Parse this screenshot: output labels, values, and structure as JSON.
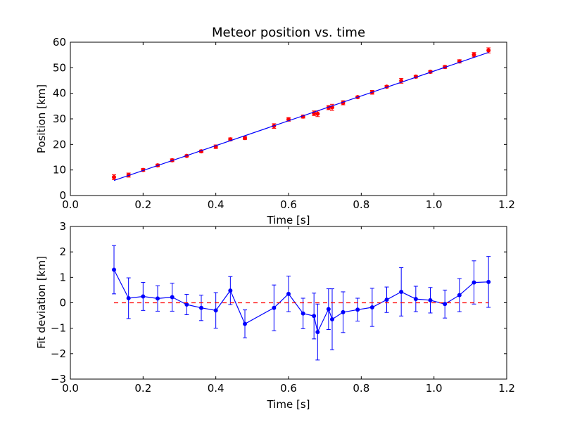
{
  "colors": {
    "fit_line": "#0000ff",
    "data_points": "#ff0000",
    "deviation_line": "#0000ff",
    "zero_line": "#ff0000",
    "axes": "#000000",
    "background": "#ffffff"
  },
  "chart_data": [
    {
      "type": "scatter",
      "title": "Meteor position vs. time",
      "xlabel": "Time [s]",
      "ylabel": "Position [km]",
      "xlim": [
        0.0,
        1.2
      ],
      "ylim": [
        0,
        60
      ],
      "xticks": [
        "0.0",
        "0.2",
        "0.4",
        "0.6",
        "0.8",
        "1.0",
        "1.2"
      ],
      "yticks": [
        "0",
        "10",
        "20",
        "30",
        "40",
        "50",
        "60"
      ],
      "grid": false,
      "legend": "none",
      "series": [
        {
          "kind": "errorbar-points",
          "color": "red",
          "x": [
            0.12,
            0.16,
            0.2,
            0.24,
            0.28,
            0.32,
            0.36,
            0.4,
            0.44,
            0.48,
            0.56,
            0.6,
            0.64,
            0.67,
            0.68,
            0.71,
            0.72,
            0.75,
            0.79,
            0.83,
            0.87,
            0.91,
            0.95,
            0.99,
            1.03,
            1.07,
            1.11,
            1.15
          ],
          "y": [
            7.2,
            8.0,
            10.0,
            11.8,
            13.8,
            15.5,
            17.3,
            19.1,
            22.0,
            22.5,
            27.2,
            29.8,
            30.9,
            32.2,
            32.0,
            34.4,
            34.5,
            36.3,
            38.5,
            40.4,
            42.6,
            44.9,
            46.5,
            48.4,
            50.3,
            52.5,
            55.1,
            56.8
          ],
          "yerr": [
            0.95,
            0.8,
            0.55,
            0.5,
            0.55,
            0.4,
            0.5,
            0.7,
            0.55,
            0.55,
            0.9,
            0.7,
            0.6,
            0.9,
            1.1,
            0.8,
            1.2,
            0.8,
            0.45,
            0.75,
            0.5,
            0.95,
            0.5,
            0.5,
            0.55,
            0.65,
            0.85,
            1.0
          ]
        },
        {
          "kind": "fit-line",
          "color": "blue",
          "x": [
            0.12,
            1.15
          ],
          "y": [
            5.9,
            56.0
          ]
        }
      ]
    },
    {
      "type": "line",
      "xlabel": "Time [s]",
      "ylabel": "Fit deviation [km]",
      "xlim": [
        0.0,
        1.2
      ],
      "ylim": [
        -3,
        3
      ],
      "xticks": [
        "0.0",
        "0.2",
        "0.4",
        "0.6",
        "0.8",
        "1.0",
        "1.2"
      ],
      "yticks": [
        "−3",
        "−2",
        "−1",
        "0",
        "1",
        "2",
        "3"
      ],
      "grid": false,
      "legend": "none",
      "series": [
        {
          "kind": "errorbar-line",
          "color": "blue",
          "x": [
            0.12,
            0.16,
            0.2,
            0.24,
            0.28,
            0.32,
            0.36,
            0.4,
            0.44,
            0.48,
            0.56,
            0.6,
            0.64,
            0.67,
            0.68,
            0.71,
            0.72,
            0.75,
            0.79,
            0.83,
            0.87,
            0.91,
            0.95,
            0.99,
            1.03,
            1.07,
            1.11,
            1.15
          ],
          "y": [
            1.3,
            0.18,
            0.25,
            0.17,
            0.22,
            -0.07,
            -0.2,
            -0.3,
            0.48,
            -0.83,
            -0.2,
            0.35,
            -0.42,
            -0.52,
            -1.15,
            -0.25,
            -0.65,
            -0.37,
            -0.27,
            -0.18,
            0.12,
            0.43,
            0.15,
            0.1,
            -0.05,
            0.3,
            0.8,
            0.82
          ],
          "yerr": [
            0.95,
            0.8,
            0.55,
            0.5,
            0.55,
            0.4,
            0.5,
            0.7,
            0.55,
            0.55,
            0.9,
            0.7,
            0.6,
            0.9,
            1.1,
            0.8,
            1.2,
            0.8,
            0.45,
            0.75,
            0.5,
            0.95,
            0.5,
            0.5,
            0.55,
            0.65,
            0.85,
            1.0
          ]
        },
        {
          "kind": "reference-line",
          "style": "dashed",
          "color": "red",
          "x": [
            0.12,
            1.15
          ],
          "y": [
            0,
            0
          ]
        }
      ]
    }
  ]
}
